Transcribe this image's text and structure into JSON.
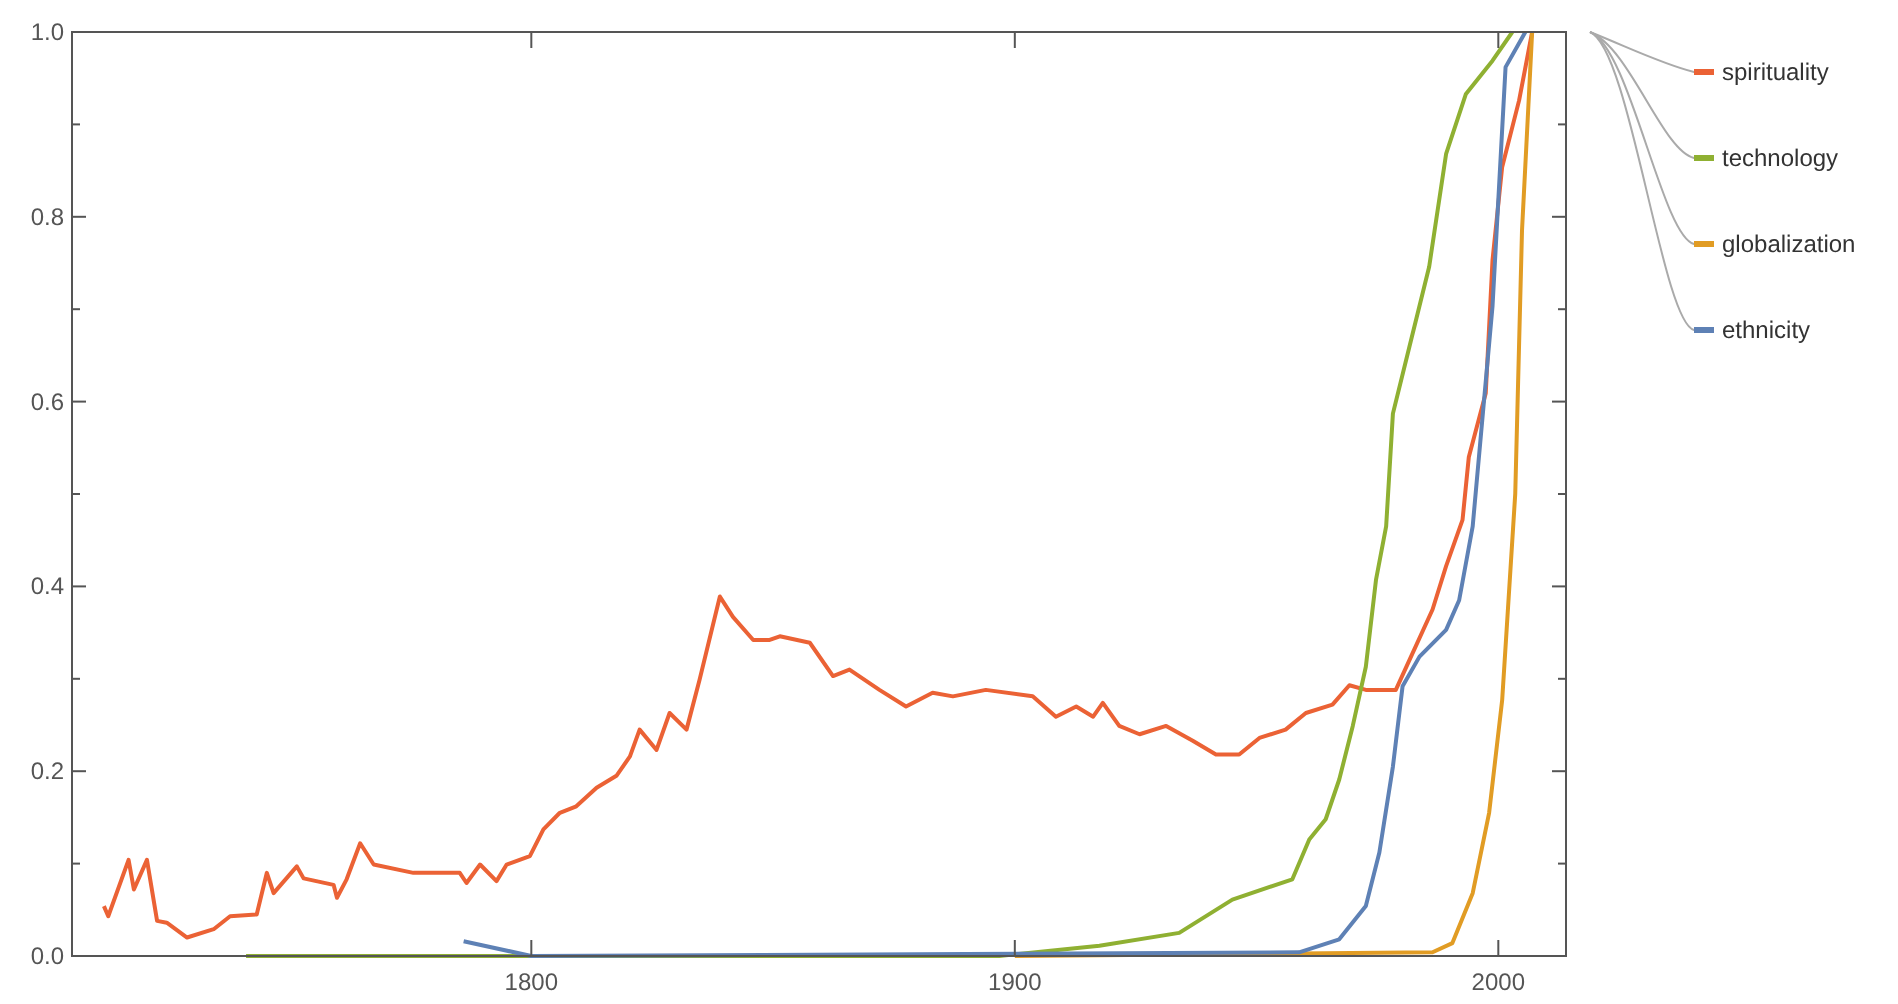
{
  "chart_data": {
    "type": "line",
    "xlim": [
      1705,
      2014
    ],
    "ylim": [
      0,
      1
    ],
    "xticks": [
      1800,
      1900,
      2000
    ],
    "yticks": [
      {
        "value": 0,
        "label": "0.0"
      },
      {
        "value": 0.1,
        "label": null
      },
      {
        "value": 0.2,
        "label": "0.2"
      },
      {
        "value": 0.3,
        "label": null
      },
      {
        "value": 0.4,
        "label": "0.4"
      },
      {
        "value": 0.5,
        "label": null
      },
      {
        "value": 0.6,
        "label": "0.6"
      },
      {
        "value": 0.7,
        "label": null
      },
      {
        "value": 0.8,
        "label": "0.8"
      },
      {
        "value": 0.9,
        "label": null
      },
      {
        "value": 1,
        "label": "1.0"
      }
    ],
    "grid": false,
    "legend": "right",
    "marker": "none",
    "line_style": "solid",
    "series": [
      {
        "name": "spirituality",
        "color": "#eb6235",
        "x": [
          1711.6,
          1712.5,
          1716.7,
          1717.8,
          1720.5,
          1722.6,
          1724.6,
          1728.8,
          1734.3,
          1737.7,
          1743.2,
          1745.3,
          1746.7,
          1751.5,
          1752.9,
          1759.1,
          1759.8,
          1761.8,
          1764.6,
          1767.4,
          1775.6,
          1785.2,
          1786.6,
          1789.4,
          1792.8,
          1794.9,
          1799.7,
          1802.5,
          1805.9,
          1809.3,
          1813.5,
          1817.6,
          1820.4,
          1822.4,
          1825.9,
          1828.6,
          1832.1,
          1834.8,
          1839,
          1841.7,
          1845.9,
          1849.3,
          1851.4,
          1857.6,
          1862.4,
          1865.8,
          1872,
          1877.5,
          1883,
          1887.2,
          1894,
          1903.7,
          1908.5,
          1912.7,
          1916.2,
          1918.2,
          1921.6,
          1925.8,
          1931.3,
          1936.8,
          1941.6,
          1946.4,
          1950.6,
          1956,
          1960.2,
          1965.7,
          1969.2,
          1972.6,
          1978.8,
          1982.3,
          1986.4,
          1989.2,
          1992.6,
          1993.9,
          1997.4,
          1998.8,
          2000.8,
          2004.3,
          2007
        ],
        "values": [
          0.054,
          0.043,
          0.104,
          0.072,
          0.104,
          0.038,
          0.036,
          0.02,
          0.029,
          0.043,
          0.045,
          0.09,
          0.068,
          0.097,
          0.084,
          0.077,
          0.063,
          0.083,
          0.122,
          0.099,
          0.09,
          0.09,
          0.079,
          0.099,
          0.081,
          0.099,
          0.108,
          0.137,
          0.155,
          0.162,
          0.182,
          0.195,
          0.216,
          0.245,
          0.223,
          0.263,
          0.245,
          0.299,
          0.389,
          0.367,
          0.342,
          0.342,
          0.346,
          0.339,
          0.303,
          0.31,
          0.288,
          0.27,
          0.285,
          0.281,
          0.288,
          0.281,
          0.259,
          0.27,
          0.259,
          0.274,
          0.249,
          0.24,
          0.249,
          0.233,
          0.218,
          0.218,
          0.236,
          0.245,
          0.263,
          0.272,
          0.293,
          0.288,
          0.288,
          0.328,
          0.375,
          0.422,
          0.472,
          0.54,
          0.609,
          0.753,
          0.854,
          0.926,
          1.0
        ]
      },
      {
        "name": "technology",
        "color": "#8fb032",
        "x": [
          1741,
          1896.8,
          1917.5,
          1934,
          1945,
          1957.4,
          1960.9,
          1964.3,
          1967.1,
          1969.9,
          1972.6,
          1974.7,
          1976.8,
          1978.2,
          1981.6,
          1985.7,
          1989.2,
          1993.3,
          1998.8,
          2002.9
        ],
        "values": [
          0,
          0,
          0.011,
          0.025,
          0.061,
          0.083,
          0.126,
          0.148,
          0.191,
          0.249,
          0.313,
          0.407,
          0.465,
          0.587,
          0.659,
          0.746,
          0.868,
          0.933,
          0.969,
          1.0
        ]
      },
      {
        "name": "globalization",
        "color": "#e19c24",
        "x": [
          1900,
          1986.4,
          1990.5,
          1994.7,
          1998.1,
          2000.8,
          2003.5,
          2004.9,
          2007
        ],
        "values": [
          0,
          0.004,
          0.014,
          0.068,
          0.155,
          0.277,
          0.5,
          0.785,
          1.0
        ]
      },
      {
        "name": "ethnicity",
        "color": "#5e81b5",
        "x": [
          1786,
          1800,
          1958.8,
          1967.1,
          1972.6,
          1975.4,
          1978.2,
          1980.2,
          1983.7,
          1989.2,
          1991.9,
          1994.7,
          1998.8,
          2001.5,
          2005.6
        ],
        "values": [
          0.016,
          0,
          0.004,
          0.018,
          0.054,
          0.112,
          0.205,
          0.292,
          0.324,
          0.353,
          0.385,
          0.465,
          0.703,
          0.962,
          1.0
        ]
      }
    ]
  }
}
